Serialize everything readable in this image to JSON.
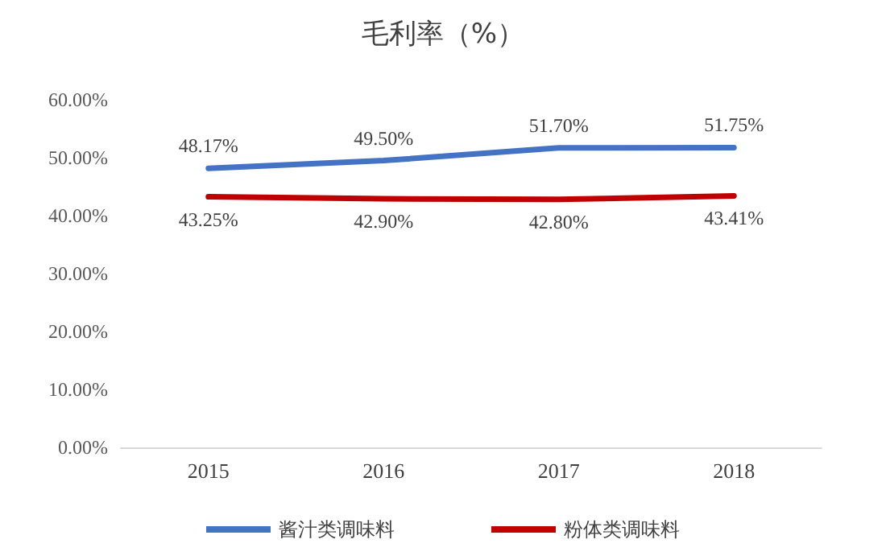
{
  "chart_data": {
    "type": "line",
    "title": "毛利率（%）",
    "categories": [
      "2015",
      "2016",
      "2017",
      "2018"
    ],
    "series": [
      {
        "name": "酱汁类调味料",
        "color": "#4472c4",
        "values": [
          48.17,
          49.5,
          51.7,
          51.75
        ],
        "value_labels": [
          "48.17%",
          "49.50%",
          "51.70%",
          "51.75%"
        ]
      },
      {
        "name": "粉体类调味料",
        "color": "#c00000",
        "values": [
          43.25,
          42.9,
          42.8,
          43.41
        ],
        "value_labels": [
          "43.25%",
          "42.90%",
          "42.80%",
          "43.41%"
        ]
      }
    ],
    "ylim": [
      0,
      60
    ],
    "yticks": [
      {
        "value": 0,
        "label": "0.00%"
      },
      {
        "value": 10,
        "label": "10.00%"
      },
      {
        "value": 20,
        "label": "20.00%"
      },
      {
        "value": 30,
        "label": "30.00%"
      },
      {
        "value": 40,
        "label": "40.00%"
      },
      {
        "value": 50,
        "label": "50.00%"
      },
      {
        "value": 60,
        "label": "60.00%"
      }
    ],
    "grid": false,
    "legend": "bottom",
    "marker": "none",
    "line_style": "solid"
  }
}
